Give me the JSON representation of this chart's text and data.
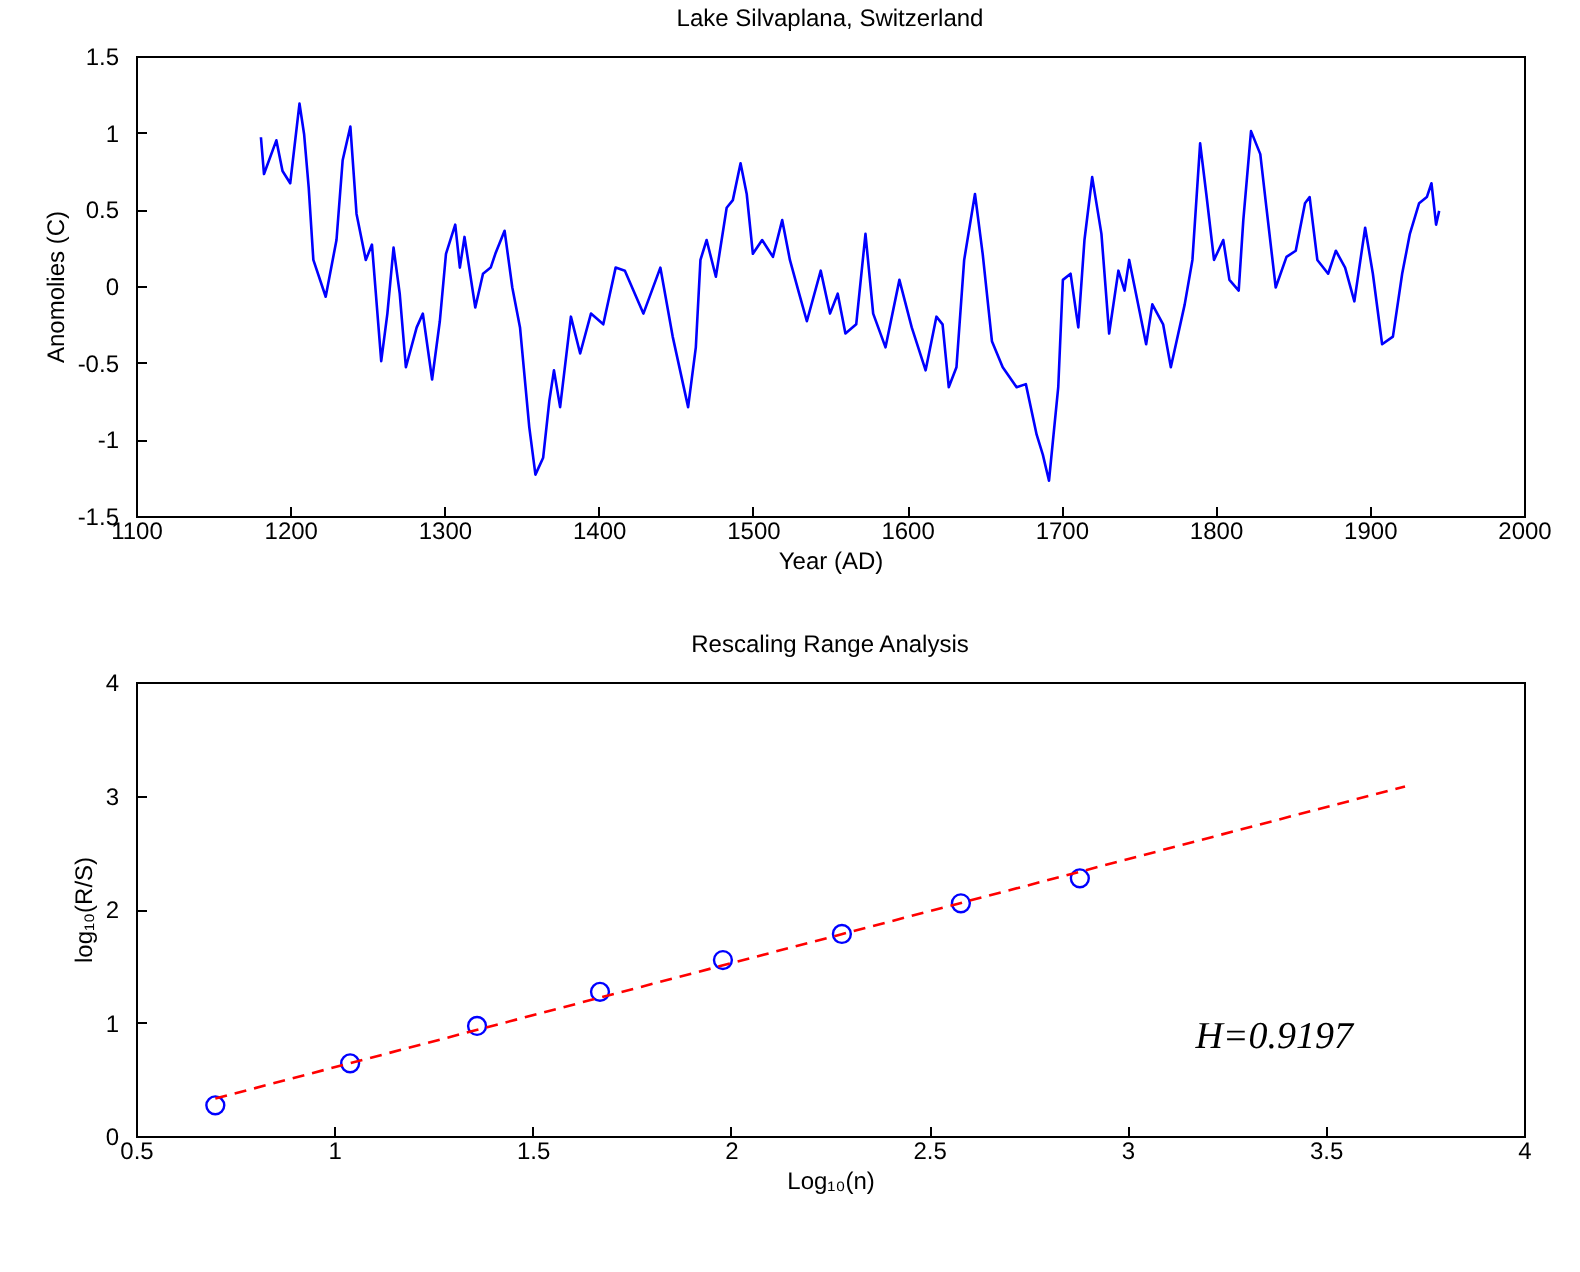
{
  "chart_data": [
    {
      "type": "line",
      "title": "Lake Silvaplana, Switzerland",
      "xlabel": "Year (AD)",
      "ylabel": "Anomolies (C)",
      "xlim": [
        1100,
        2000
      ],
      "xticks": [
        1100,
        1200,
        1300,
        1400,
        1500,
        1600,
        1700,
        1800,
        1900,
        2000
      ],
      "ylim": [
        -1.5,
        1.5
      ],
      "yticks": [
        -1.5,
        -1,
        -0.5,
        0,
        0.5,
        1,
        1.5
      ],
      "grid": false,
      "x": [
        1181,
        1183,
        1191,
        1195,
        1200,
        1206,
        1209,
        1212,
        1215,
        1223,
        1230,
        1234,
        1239,
        1243,
        1249,
        1253,
        1259,
        1263,
        1267,
        1271,
        1275,
        1282,
        1286,
        1292,
        1297,
        1301,
        1307,
        1310,
        1313,
        1320,
        1325,
        1330,
        1333,
        1339,
        1344,
        1349,
        1355,
        1359,
        1364,
        1368,
        1371,
        1375,
        1382,
        1388,
        1395,
        1403,
        1411,
        1417,
        1429,
        1440,
        1448,
        1458,
        1463,
        1466,
        1470,
        1476,
        1483,
        1487,
        1492,
        1496,
        1500,
        1506,
        1513,
        1519,
        1524,
        1530,
        1535,
        1544,
        1550,
        1555,
        1560,
        1567,
        1573,
        1578,
        1586,
        1595,
        1603,
        1612,
        1619,
        1623,
        1627,
        1632,
        1637,
        1644,
        1649,
        1655,
        1662,
        1671,
        1677,
        1684,
        1688,
        1692,
        1698,
        1701,
        1706,
        1711,
        1715,
        1720,
        1726,
        1731,
        1737,
        1741,
        1744,
        1751,
        1755,
        1759,
        1766,
        1771,
        1780,
        1785,
        1790,
        1794,
        1799,
        1805,
        1809,
        1815,
        1818,
        1823,
        1829,
        1833,
        1839,
        1846,
        1852,
        1858,
        1861,
        1866,
        1873,
        1878,
        1884,
        1890,
        1897,
        1902,
        1908,
        1915,
        1921,
        1926,
        1932,
        1937,
        1940,
        1943,
        1945
      ],
      "series": [
        {
          "color": "#0000ff",
          "values": [
            0.97,
            0.73,
            0.95,
            0.75,
            0.67,
            1.19,
            0.99,
            0.64,
            0.17,
            -0.07,
            0.3,
            0.82,
            1.04,
            0.47,
            0.17,
            0.27,
            -0.49,
            -0.18,
            0.25,
            -0.05,
            -0.53,
            -0.27,
            -0.18,
            -0.61,
            -0.23,
            0.21,
            0.4,
            0.12,
            0.32,
            -0.14,
            0.08,
            0.12,
            0.21,
            0.36,
            -0.01,
            -0.27,
            -0.92,
            -1.23,
            -1.12,
            -0.75,
            -0.55,
            -0.79,
            -0.2,
            -0.44,
            -0.18,
            -0.25,
            0.12,
            0.1,
            -0.18,
            0.12,
            -0.33,
            -0.79,
            -0.4,
            0.17,
            0.3,
            0.06,
            0.51,
            0.56,
            0.8,
            0.6,
            0.21,
            0.3,
            0.19,
            0.43,
            0.17,
            -0.05,
            -0.23,
            0.1,
            -0.18,
            -0.05,
            -0.31,
            -0.25,
            0.34,
            -0.18,
            -0.4,
            0.04,
            -0.27,
            -0.55,
            -0.2,
            -0.25,
            -0.66,
            -0.53,
            0.17,
            0.6,
            0.21,
            -0.36,
            -0.53,
            -0.66,
            -0.64,
            -0.97,
            -1.1,
            -1.27,
            -0.66,
            0.04,
            0.08,
            -0.27,
            0.3,
            0.71,
            0.34,
            -0.31,
            0.1,
            -0.03,
            0.17,
            -0.18,
            -0.38,
            -0.12,
            -0.25,
            -0.53,
            -0.12,
            0.17,
            0.93,
            0.6,
            0.17,
            0.3,
            0.04,
            -0.03,
            0.43,
            1.01,
            0.86,
            0.51,
            -0.01,
            0.19,
            0.23,
            0.54,
            0.58,
            0.17,
            0.08,
            0.23,
            0.12,
            -0.1,
            0.38,
            0.08,
            -0.38,
            -0.33,
            0.08,
            0.34,
            0.54,
            0.58,
            0.67,
            0.4,
            0.49
          ]
        }
      ]
    },
    {
      "type": "scatter",
      "title": "Rescaling Range Analysis",
      "xlabel": "Log₁₀(n)",
      "ylabel": "log₁₀(R/S)",
      "xlim": [
        0.5,
        4
      ],
      "xticks": [
        0.5,
        1,
        1.5,
        2,
        2.5,
        3,
        3.5,
        4
      ],
      "ylim": [
        0,
        4
      ],
      "yticks": [
        0,
        1,
        2,
        3,
        4
      ],
      "grid": false,
      "annotations": [
        "H=0.9197"
      ],
      "series": [
        {
          "marker": "circle",
          "color": "#0000ff",
          "x": [
            0.7,
            1.04,
            1.36,
            1.67,
            1.98,
            2.28,
            2.58,
            2.88
          ],
          "values": [
            0.27,
            0.64,
            0.97,
            1.27,
            1.55,
            1.78,
            2.05,
            2.27
          ]
        },
        {
          "type": "line",
          "line_style": "dashed",
          "color": "#ff0000",
          "x": [
            0.7,
            3.7
          ],
          "values": [
            0.33,
            3.08
          ]
        }
      ]
    }
  ]
}
